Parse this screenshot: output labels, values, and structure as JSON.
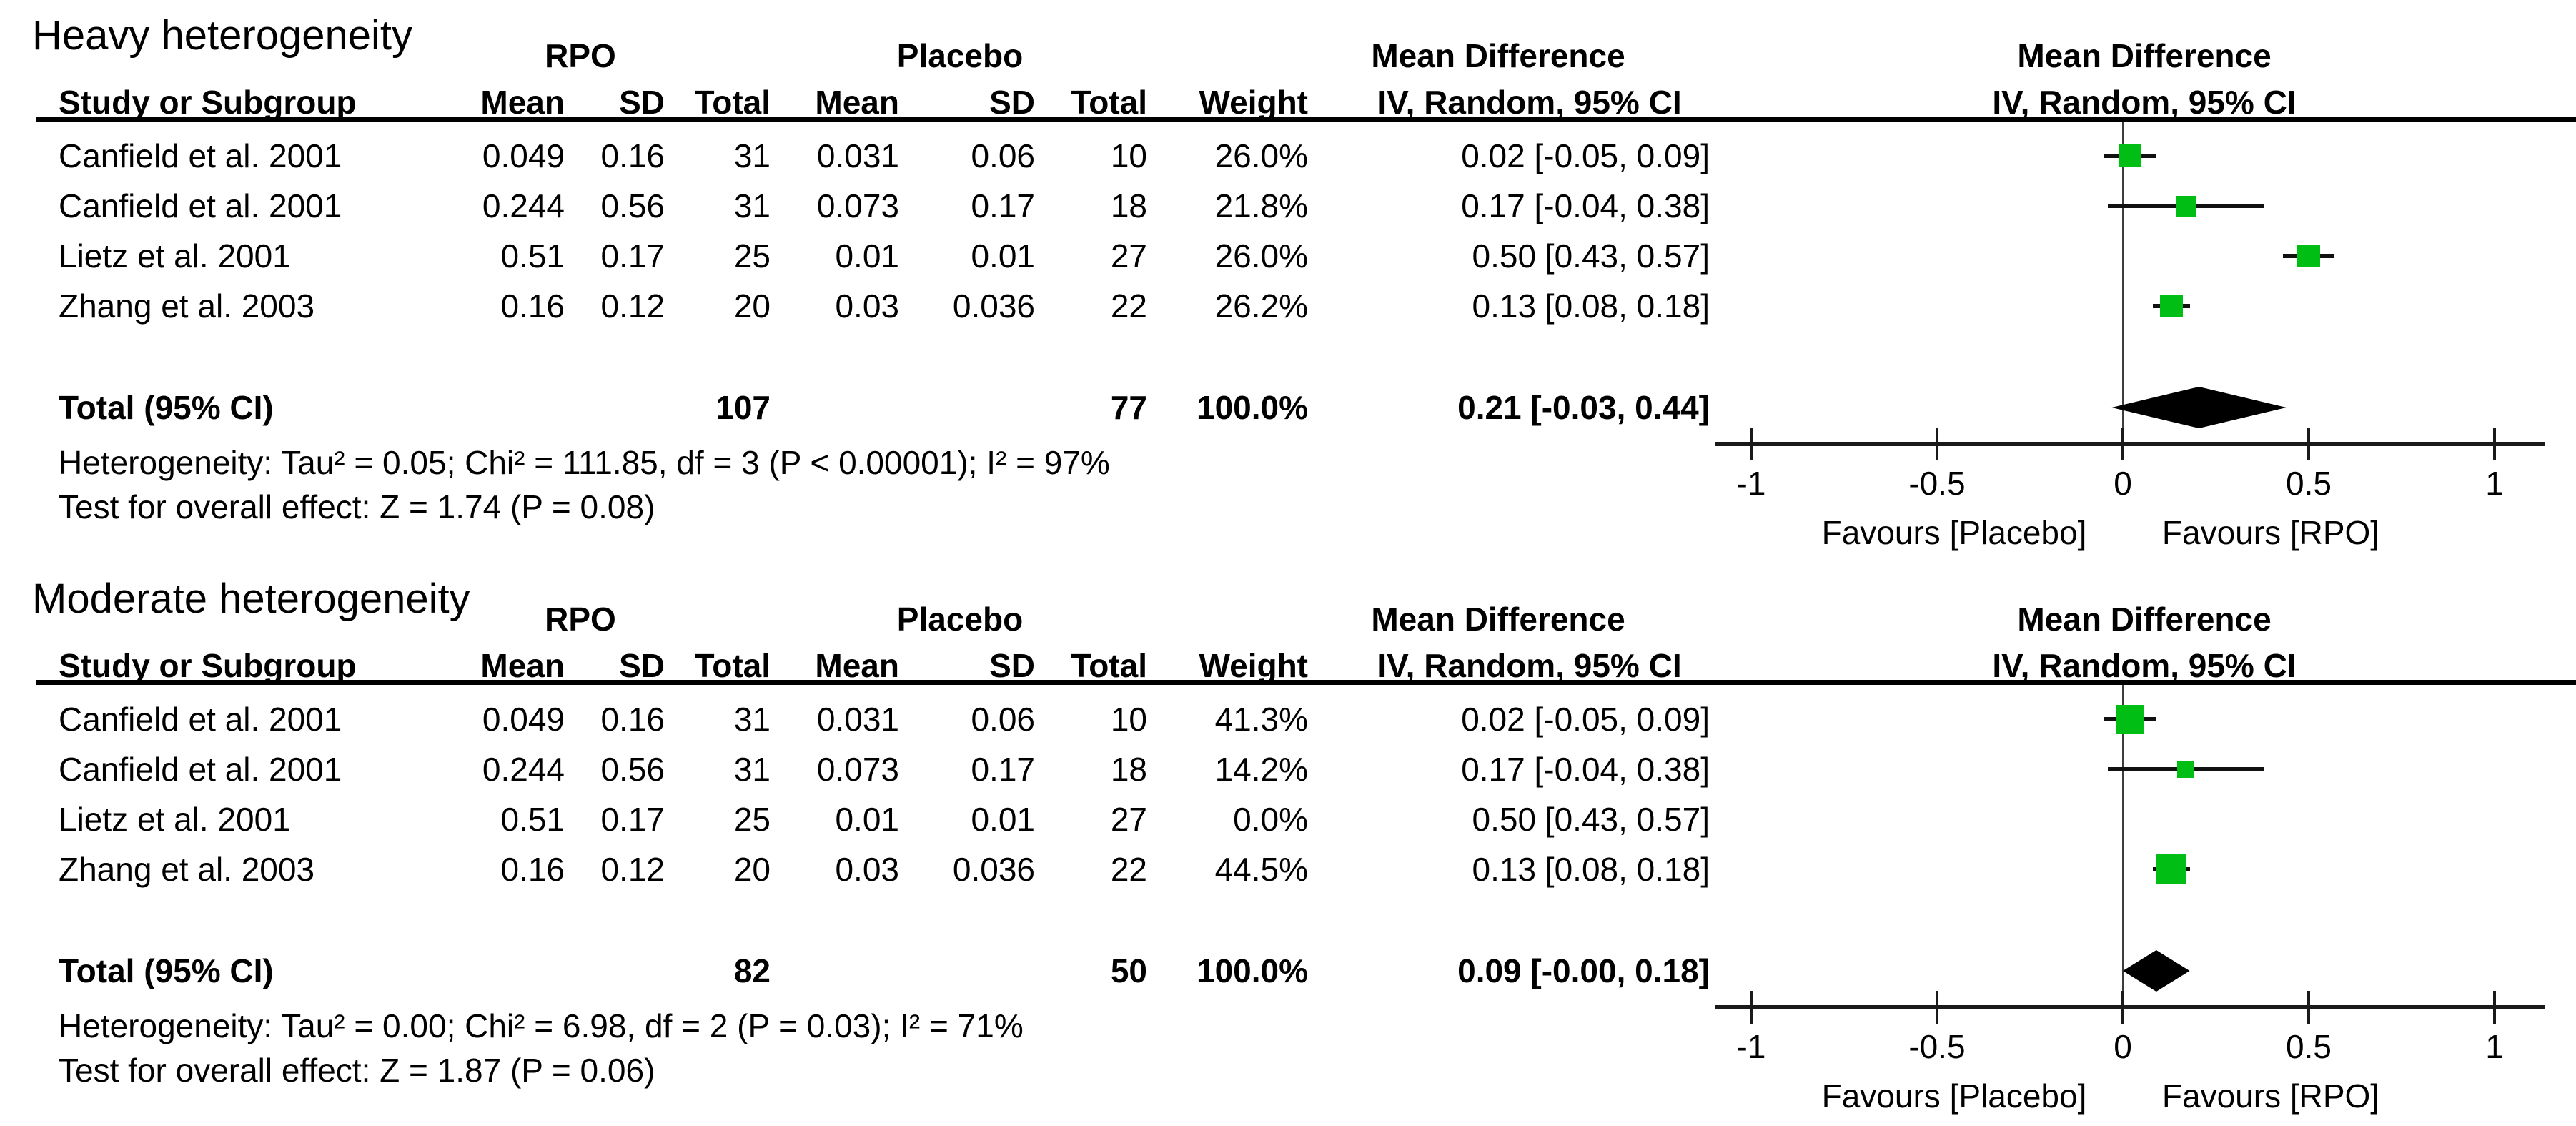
{
  "colors": {
    "square_green": "#00be14",
    "diamond_black": "#000000",
    "line_black": "#1a1a1a",
    "text_black": "#000000",
    "background": "#ffffff"
  },
  "columns": {
    "study": "Study or Subgroup",
    "mean": "Mean",
    "sd": "SD",
    "total": "Total",
    "weight": "Weight"
  },
  "chart_data": [
    {
      "type": "forest",
      "title": "Heavy heterogeneity",
      "effect_label": "Mean Difference",
      "method_label": "IV, Random, 95% CI",
      "groups": {
        "treatment": "RPO",
        "control": "Placebo"
      },
      "axis": {
        "min": -1,
        "max": 1,
        "ticks": [
          -1,
          -0.5,
          0,
          0.5,
          1
        ],
        "tick_labels": [
          "-1",
          "-0.5",
          "0",
          "0.5",
          "1"
        ],
        "favours_left": "Favours [Placebo]",
        "favours_right": "Favours [RPO]"
      },
      "studies": [
        {
          "name": "Canfield et al. 2001",
          "rpo_mean": "0.049",
          "rpo_sd": "0.16",
          "rpo_total": "31",
          "pl_mean": "0.031",
          "pl_sd": "0.06",
          "pl_total": "10",
          "weight": "26.0%",
          "weight_pct": 26.0,
          "md": 0.02,
          "ci_low": -0.05,
          "ci_high": 0.09,
          "ci_text": "0.02 [-0.05, 0.09]"
        },
        {
          "name": "Canfield et al. 2001",
          "rpo_mean": "0.244",
          "rpo_sd": "0.56",
          "rpo_total": "31",
          "pl_mean": "0.073",
          "pl_sd": "0.17",
          "pl_total": "18",
          "weight": "21.8%",
          "weight_pct": 21.8,
          "md": 0.17,
          "ci_low": -0.04,
          "ci_high": 0.38,
          "ci_text": "0.17 [-0.04, 0.38]"
        },
        {
          "name": "Lietz et al. 2001",
          "rpo_mean": "0.51",
          "rpo_sd": "0.17",
          "rpo_total": "25",
          "pl_mean": "0.01",
          "pl_sd": "0.01",
          "pl_total": "27",
          "weight": "26.0%",
          "weight_pct": 26.0,
          "md": 0.5,
          "ci_low": 0.43,
          "ci_high": 0.57,
          "ci_text": "0.50 [0.43, 0.57]"
        },
        {
          "name": "Zhang et al. 2003",
          "rpo_mean": "0.16",
          "rpo_sd": "0.12",
          "rpo_total": "20",
          "pl_mean": "0.03",
          "pl_sd": "0.036",
          "pl_total": "22",
          "weight": "26.2%",
          "weight_pct": 26.2,
          "md": 0.13,
          "ci_low": 0.08,
          "ci_high": 0.18,
          "ci_text": "0.13 [0.08, 0.18]"
        }
      ],
      "total": {
        "label": "Total (95% CI)",
        "rpo_total": "107",
        "pl_total": "77",
        "weight": "100.0%",
        "md": 0.21,
        "ci_low": -0.03,
        "ci_high": 0.44,
        "ci_text": "0.21 [-0.03, 0.44]"
      },
      "heterogeneity_text": "Heterogeneity: Tau² = 0.05; Chi² = 111.85, df = 3 (P < 0.00001); I² = 97%",
      "overall_effect_text": "Test for overall effect: Z = 1.74 (P = 0.08)"
    },
    {
      "type": "forest",
      "title": "Moderate heterogeneity",
      "effect_label": "Mean Difference",
      "method_label": "IV, Random, 95% CI",
      "groups": {
        "treatment": "RPO",
        "control": "Placebo"
      },
      "axis": {
        "min": -1,
        "max": 1,
        "ticks": [
          -1,
          -0.5,
          0,
          0.5,
          1
        ],
        "tick_labels": [
          "-1",
          "-0.5",
          "0",
          "0.5",
          "1"
        ],
        "favours_left": "Favours [Placebo]",
        "favours_right": "Favours [RPO]"
      },
      "studies": [
        {
          "name": "Canfield et al. 2001",
          "rpo_mean": "0.049",
          "rpo_sd": "0.16",
          "rpo_total": "31",
          "pl_mean": "0.031",
          "pl_sd": "0.06",
          "pl_total": "10",
          "weight": "41.3%",
          "weight_pct": 41.3,
          "md": 0.02,
          "ci_low": -0.05,
          "ci_high": 0.09,
          "ci_text": "0.02 [-0.05, 0.09]"
        },
        {
          "name": "Canfield et al. 2001",
          "rpo_mean": "0.244",
          "rpo_sd": "0.56",
          "rpo_total": "31",
          "pl_mean": "0.073",
          "pl_sd": "0.17",
          "pl_total": "18",
          "weight": "14.2%",
          "weight_pct": 14.2,
          "md": 0.17,
          "ci_low": -0.04,
          "ci_high": 0.38,
          "ci_text": "0.17 [-0.04, 0.38]"
        },
        {
          "name": "Lietz et al. 2001",
          "rpo_mean": "0.51",
          "rpo_sd": "0.17",
          "rpo_total": "25",
          "pl_mean": "0.01",
          "pl_sd": "0.01",
          "pl_total": "27",
          "weight": "0.0%",
          "weight_pct": 0.0,
          "md": 0.5,
          "ci_low": 0.43,
          "ci_high": 0.57,
          "ci_text": "0.50 [0.43, 0.57]"
        },
        {
          "name": "Zhang et al. 2003",
          "rpo_mean": "0.16",
          "rpo_sd": "0.12",
          "rpo_total": "20",
          "pl_mean": "0.03",
          "pl_sd": "0.036",
          "pl_total": "22",
          "weight": "44.5%",
          "weight_pct": 44.5,
          "md": 0.13,
          "ci_low": 0.08,
          "ci_high": 0.18,
          "ci_text": "0.13 [0.08, 0.18]"
        }
      ],
      "total": {
        "label": "Total (95% CI)",
        "rpo_total": "82",
        "pl_total": "50",
        "weight": "100.0%",
        "md": 0.09,
        "ci_low": -0.0,
        "ci_high": 0.18,
        "ci_text": "0.09 [-0.00, 0.18]"
      },
      "heterogeneity_text": "Heterogeneity: Tau² = 0.00; Chi² = 6.98, df = 2 (P = 0.03); I² = 71%",
      "overall_effect_text": "Test for overall effect: Z = 1.87 (P = 0.06)"
    }
  ]
}
